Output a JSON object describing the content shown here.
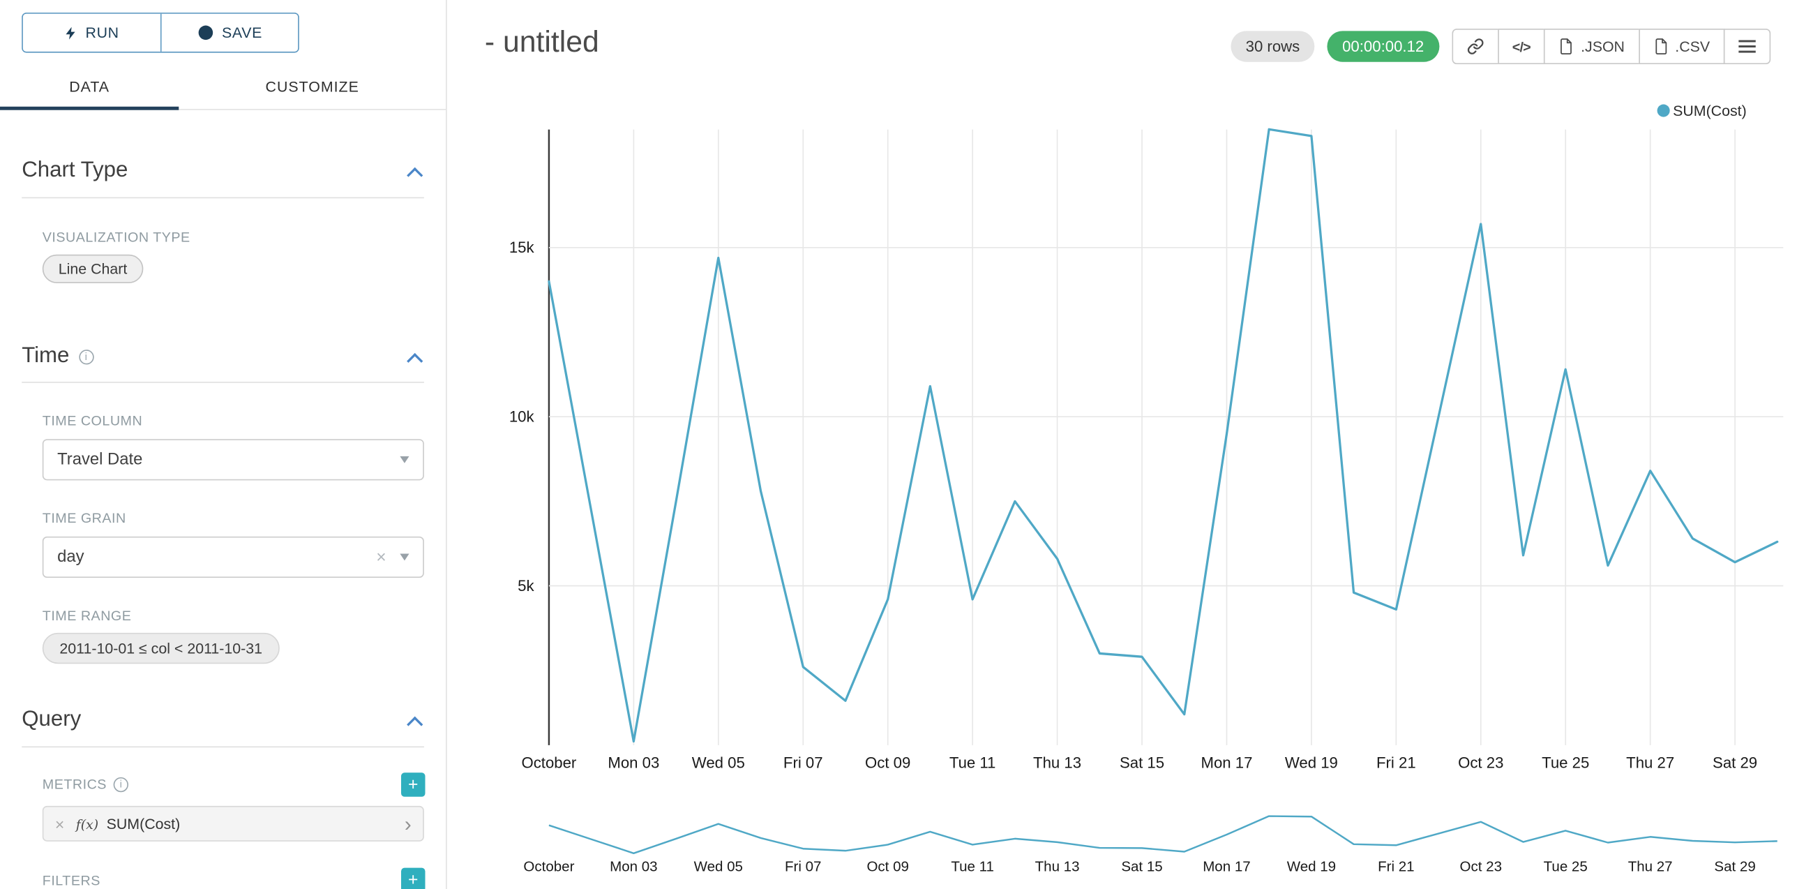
{
  "colors": {
    "series": "#4fa8c6",
    "accent_blue": "#4a86c8",
    "teal_button": "#2fafbe",
    "navy": "#1c3e57",
    "timer_green": "#44b26a"
  },
  "sidebar": {
    "run_button": "RUN",
    "save_button": "SAVE",
    "tabs": [
      {
        "label": "DATA"
      },
      {
        "label": "CUSTOMIZE"
      }
    ],
    "chart_type_section": {
      "title": "Chart Type",
      "visualization_type_label": "VISUALIZATION TYPE",
      "visualization_type_value": "Line Chart"
    },
    "time_section": {
      "title": "Time",
      "time_column_label": "TIME COLUMN",
      "time_column_value": "Travel Date",
      "time_grain_label": "TIME GRAIN",
      "time_grain_value": "day",
      "time_range_label": "TIME RANGE",
      "time_range_value": "2011-10-01 ≤ col < 2011-10-31"
    },
    "query_section": {
      "title": "Query",
      "metrics_label": "METRICS",
      "metric_function_prefix": "f(x)",
      "metric_value": "SUM(Cost)",
      "filters_label": "FILTERS"
    },
    "info_glyph": "i",
    "clear_glyph": "×",
    "plus_glyph": "+",
    "chevron_glyph": "›"
  },
  "header": {
    "title": "- untitled",
    "rows_badge": "30 rows",
    "timer_badge": "00:00:00.12",
    "code_button": "</>",
    "json_button": ".JSON",
    "csv_button": ".CSV"
  },
  "legend": {
    "label": "SUM(Cost)"
  },
  "chart_data": {
    "type": "line",
    "title": "",
    "xlabel": "",
    "ylabel": "",
    "grid": true,
    "legend_position": "top-right",
    "has_range_brush_preview": true,
    "x": [
      "2011-10-01",
      "2011-10-02",
      "2011-10-03",
      "2011-10-04",
      "2011-10-05",
      "2011-10-06",
      "2011-10-07",
      "2011-10-08",
      "2011-10-09",
      "2011-10-10",
      "2011-10-11",
      "2011-10-12",
      "2011-10-13",
      "2011-10-14",
      "2011-10-15",
      "2011-10-16",
      "2011-10-17",
      "2011-10-18",
      "2011-10-19",
      "2011-10-20",
      "2011-10-21",
      "2011-10-22",
      "2011-10-23",
      "2011-10-24",
      "2011-10-25",
      "2011-10-26",
      "2011-10-27",
      "2011-10-28",
      "2011-10-29",
      "2011-10-30"
    ],
    "series": [
      {
        "name": "SUM(Cost)",
        "color": "#4fa8c6",
        "values": [
          14000,
          7200,
          400,
          7500,
          14700,
          7800,
          2600,
          1600,
          4600,
          10900,
          4600,
          7500,
          5800,
          3000,
          2900,
          1200,
          9500,
          18500,
          18300,
          4800,
          4300,
          10000,
          15700,
          5900,
          11400,
          5600,
          8400,
          6400,
          5700,
          6300
        ]
      }
    ],
    "x_tick_labels": [
      "October",
      "Mon 03",
      "Wed 05",
      "Fri 07",
      "Oct 09",
      "Tue 11",
      "Thu 13",
      "Sat 15",
      "Mon 17",
      "Wed 19",
      "Fri 21",
      "Oct 23",
      "Tue 25",
      "Thu 27",
      "Sat 29"
    ],
    "x_tick_every": 2,
    "y_ticks": [
      {
        "value": 5000,
        "label": "5k"
      },
      {
        "value": 10000,
        "label": "10k"
      },
      {
        "value": 15000,
        "label": "15k"
      }
    ],
    "ylim": [
      0,
      19000
    ]
  }
}
